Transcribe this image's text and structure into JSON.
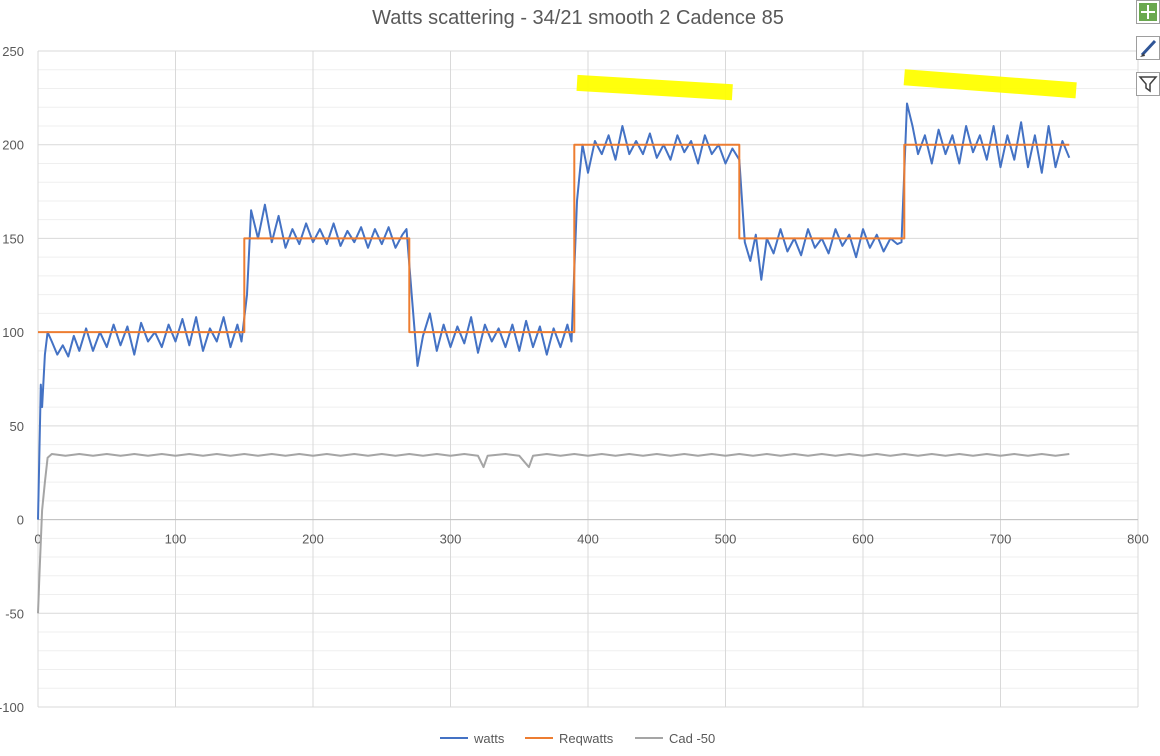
{
  "chart_data": {
    "type": "line",
    "title": "Watts scattering - 34/21 smooth 2 Cadence 85",
    "xlabel": "",
    "ylabel": "",
    "xlim": [
      0,
      800
    ],
    "ylim": [
      -100,
      250
    ],
    "x_ticks": [
      "0",
      "100",
      "200",
      "300",
      "400",
      "500",
      "600",
      "700",
      "800"
    ],
    "y_ticks": [
      "-100",
      "-50",
      "0",
      "50",
      "100",
      "150",
      "200",
      "250"
    ],
    "grid": true,
    "legend_position": "bottom",
    "series": [
      {
        "name": "watts",
        "color": "#4472C4",
        "points": [
          [
            0,
            0
          ],
          [
            2,
            72
          ],
          [
            3,
            60
          ],
          [
            5,
            88
          ],
          [
            7,
            100
          ],
          [
            10,
            95
          ],
          [
            14,
            88
          ],
          [
            18,
            93
          ],
          [
            22,
            87
          ],
          [
            26,
            98
          ],
          [
            30,
            90
          ],
          [
            35,
            102
          ],
          [
            40,
            90
          ],
          [
            45,
            100
          ],
          [
            50,
            92
          ],
          [
            55,
            104
          ],
          [
            60,
            93
          ],
          [
            65,
            103
          ],
          [
            70,
            88
          ],
          [
            75,
            105
          ],
          [
            80,
            95
          ],
          [
            85,
            100
          ],
          [
            90,
            92
          ],
          [
            95,
            104
          ],
          [
            100,
            95
          ],
          [
            105,
            107
          ],
          [
            110,
            93
          ],
          [
            115,
            108
          ],
          [
            120,
            90
          ],
          [
            125,
            102
          ],
          [
            130,
            95
          ],
          [
            135,
            108
          ],
          [
            140,
            92
          ],
          [
            145,
            104
          ],
          [
            148,
            95
          ],
          [
            152,
            120
          ],
          [
            155,
            165
          ],
          [
            160,
            150
          ],
          [
            165,
            168
          ],
          [
            170,
            148
          ],
          [
            175,
            162
          ],
          [
            180,
            145
          ],
          [
            185,
            155
          ],
          [
            190,
            147
          ],
          [
            195,
            158
          ],
          [
            200,
            148
          ],
          [
            205,
            155
          ],
          [
            210,
            147
          ],
          [
            215,
            158
          ],
          [
            220,
            146
          ],
          [
            225,
            154
          ],
          [
            230,
            148
          ],
          [
            235,
            156
          ],
          [
            240,
            145
          ],
          [
            245,
            155
          ],
          [
            250,
            147
          ],
          [
            255,
            156
          ],
          [
            260,
            145
          ],
          [
            265,
            152
          ],
          [
            268,
            155
          ],
          [
            272,
            118
          ],
          [
            276,
            82
          ],
          [
            280,
            98
          ],
          [
            285,
            110
          ],
          [
            290,
            90
          ],
          [
            295,
            104
          ],
          [
            300,
            92
          ],
          [
            305,
            103
          ],
          [
            310,
            94
          ],
          [
            315,
            108
          ],
          [
            320,
            89
          ],
          [
            325,
            104
          ],
          [
            330,
            95
          ],
          [
            335,
            102
          ],
          [
            340,
            92
          ],
          [
            345,
            104
          ],
          [
            350,
            90
          ],
          [
            355,
            106
          ],
          [
            360,
            92
          ],
          [
            365,
            103
          ],
          [
            370,
            88
          ],
          [
            375,
            102
          ],
          [
            380,
            92
          ],
          [
            385,
            104
          ],
          [
            388,
            95
          ],
          [
            392,
            170
          ],
          [
            396,
            200
          ],
          [
            400,
            185
          ],
          [
            405,
            202
          ],
          [
            410,
            195
          ],
          [
            415,
            205
          ],
          [
            420,
            192
          ],
          [
            425,
            210
          ],
          [
            430,
            195
          ],
          [
            435,
            202
          ],
          [
            440,
            195
          ],
          [
            445,
            206
          ],
          [
            450,
            193
          ],
          [
            455,
            200
          ],
          [
            460,
            192
          ],
          [
            465,
            205
          ],
          [
            470,
            196
          ],
          [
            475,
            202
          ],
          [
            480,
            190
          ],
          [
            485,
            205
          ],
          [
            490,
            195
          ],
          [
            495,
            200
          ],
          [
            500,
            190
          ],
          [
            505,
            198
          ],
          [
            510,
            192
          ],
          [
            514,
            148
          ],
          [
            518,
            138
          ],
          [
            522,
            152
          ],
          [
            526,
            128
          ],
          [
            530,
            150
          ],
          [
            535,
            142
          ],
          [
            540,
            155
          ],
          [
            545,
            143
          ],
          [
            550,
            150
          ],
          [
            555,
            141
          ],
          [
            560,
            155
          ],
          [
            565,
            145
          ],
          [
            570,
            150
          ],
          [
            575,
            142
          ],
          [
            580,
            155
          ],
          [
            585,
            146
          ],
          [
            590,
            152
          ],
          [
            595,
            140
          ],
          [
            600,
            155
          ],
          [
            605,
            145
          ],
          [
            610,
            152
          ],
          [
            615,
            143
          ],
          [
            620,
            150
          ],
          [
            625,
            147
          ],
          [
            628,
            148
          ],
          [
            632,
            222
          ],
          [
            636,
            210
          ],
          [
            640,
            195
          ],
          [
            645,
            205
          ],
          [
            650,
            190
          ],
          [
            655,
            208
          ],
          [
            660,
            195
          ],
          [
            665,
            205
          ],
          [
            670,
            190
          ],
          [
            675,
            210
          ],
          [
            680,
            196
          ],
          [
            685,
            205
          ],
          [
            690,
            192
          ],
          [
            695,
            210
          ],
          [
            700,
            188
          ],
          [
            705,
            205
          ],
          [
            710,
            192
          ],
          [
            715,
            212
          ],
          [
            720,
            188
          ],
          [
            725,
            205
          ],
          [
            730,
            185
          ],
          [
            735,
            210
          ],
          [
            740,
            188
          ],
          [
            745,
            202
          ],
          [
            750,
            193
          ]
        ]
      },
      {
        "name": "Reqwatts",
        "color": "#ED7D31",
        "points": [
          [
            0,
            100
          ],
          [
            150,
            100
          ],
          [
            150,
            150
          ],
          [
            270,
            150
          ],
          [
            270,
            100
          ],
          [
            390,
            100
          ],
          [
            390,
            200
          ],
          [
            510,
            200
          ],
          [
            510,
            150
          ],
          [
            630,
            150
          ],
          [
            630,
            200
          ],
          [
            750,
            200
          ]
        ]
      },
      {
        "name": "Cad -50",
        "color": "#A5A5A5",
        "points": [
          [
            0,
            -50
          ],
          [
            1,
            -30
          ],
          [
            3,
            5
          ],
          [
            5,
            20
          ],
          [
            7,
            33
          ],
          [
            10,
            35
          ],
          [
            20,
            34
          ],
          [
            30,
            35
          ],
          [
            40,
            34
          ],
          [
            50,
            35
          ],
          [
            60,
            34
          ],
          [
            70,
            35
          ],
          [
            80,
            34
          ],
          [
            90,
            35
          ],
          [
            100,
            34
          ],
          [
            110,
            35
          ],
          [
            120,
            34
          ],
          [
            130,
            35
          ],
          [
            140,
            34
          ],
          [
            150,
            35
          ],
          [
            160,
            34
          ],
          [
            170,
            35
          ],
          [
            180,
            34
          ],
          [
            190,
            35
          ],
          [
            200,
            34
          ],
          [
            210,
            35
          ],
          [
            220,
            34
          ],
          [
            230,
            35
          ],
          [
            240,
            34
          ],
          [
            250,
            35
          ],
          [
            260,
            34
          ],
          [
            270,
            35
          ],
          [
            280,
            34
          ],
          [
            290,
            35
          ],
          [
            300,
            34
          ],
          [
            310,
            35
          ],
          [
            320,
            34
          ],
          [
            324,
            28
          ],
          [
            327,
            34
          ],
          [
            340,
            35
          ],
          [
            350,
            34
          ],
          [
            357,
            28
          ],
          [
            360,
            34
          ],
          [
            370,
            35
          ],
          [
            380,
            34
          ],
          [
            390,
            35
          ],
          [
            400,
            34
          ],
          [
            410,
            35
          ],
          [
            420,
            34
          ],
          [
            430,
            35
          ],
          [
            440,
            34
          ],
          [
            450,
            35
          ],
          [
            460,
            34
          ],
          [
            470,
            35
          ],
          [
            480,
            34
          ],
          [
            490,
            35
          ],
          [
            500,
            34
          ],
          [
            510,
            35
          ],
          [
            520,
            34
          ],
          [
            530,
            35
          ],
          [
            540,
            34
          ],
          [
            550,
            35
          ],
          [
            560,
            34
          ],
          [
            570,
            35
          ],
          [
            580,
            34
          ],
          [
            590,
            35
          ],
          [
            600,
            34
          ],
          [
            610,
            35
          ],
          [
            620,
            34
          ],
          [
            630,
            35
          ],
          [
            640,
            34
          ],
          [
            650,
            35
          ],
          [
            660,
            34
          ],
          [
            670,
            35
          ],
          [
            680,
            34
          ],
          [
            690,
            35
          ],
          [
            700,
            34
          ],
          [
            710,
            35
          ],
          [
            720,
            34
          ],
          [
            730,
            35
          ],
          [
            740,
            34
          ],
          [
            750,
            35
          ]
        ]
      }
    ],
    "highlights": {
      "color": "#FFFF00",
      "marks": [
        {
          "x": [
            392,
            505
          ],
          "y": [
            233,
            228
          ]
        },
        {
          "x": [
            630,
            755
          ],
          "y": [
            236,
            229
          ]
        }
      ]
    }
  },
  "toolbar": {
    "buttons": [
      "chart-elements",
      "chart-styles",
      "chart-filters"
    ]
  }
}
